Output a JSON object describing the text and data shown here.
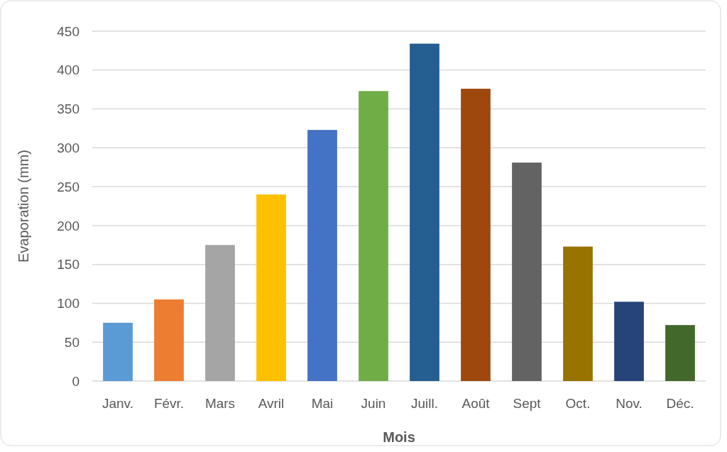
{
  "chart_data": {
    "type": "bar",
    "xlabel": "Mois",
    "ylabel": "Evaporation (mm)",
    "categories": [
      "Janv.",
      "Févr.",
      "Mars",
      "Avril",
      "Mai",
      "Juin",
      "Juill.",
      "Août",
      "Sept",
      "Oct.",
      "Nov.",
      "Déc."
    ],
    "values": [
      75,
      105,
      175,
      240,
      323,
      373,
      434,
      376,
      281,
      173,
      102,
      72
    ],
    "colors": [
      "#5b9bd5",
      "#ed7d31",
      "#a5a5a5",
      "#ffc000",
      "#4472c4",
      "#70ad47",
      "#255e91",
      "#9e480e",
      "#636363",
      "#997300",
      "#264478",
      "#43682b"
    ],
    "ylim": [
      0,
      450
    ],
    "yticks": [
      0,
      50,
      100,
      150,
      200,
      250,
      300,
      350,
      400,
      450
    ],
    "grid": "y"
  }
}
